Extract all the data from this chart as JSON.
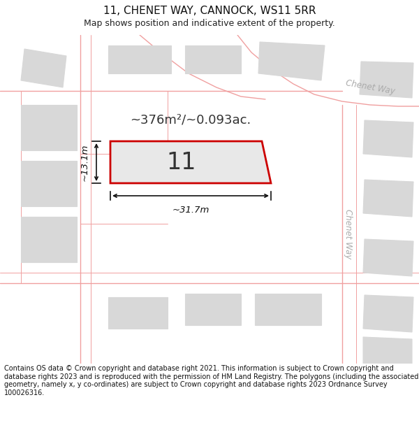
{
  "title": "11, CHENET WAY, CANNOCK, WS11 5RR",
  "subtitle": "Map shows position and indicative extent of the property.",
  "footer": "Contains OS data © Crown copyright and database right 2021. This information is subject to Crown copyright and database rights 2023 and is reproduced with the permission of HM Land Registry. The polygons (including the associated geometry, namely x, y co-ordinates) are subject to Crown copyright and database rights 2023 Ordnance Survey 100026316.",
  "area_label": "~376m²/~0.093ac.",
  "width_label": "~31.7m",
  "height_label": "~13.1m",
  "plot_number": "11",
  "map_bg": "#ffffff",
  "plot_fill": "#e8e8e8",
  "plot_edge": "#cc0000",
  "road_line_color": "#f0a0a0",
  "building_fill": "#d8d8d8",
  "building_edge": "#d8d8d8",
  "dim_color": "#111111",
  "road_label_color": "#aaaaaa",
  "title_fontsize": 11,
  "subtitle_fontsize": 9,
  "footer_fontsize": 7
}
